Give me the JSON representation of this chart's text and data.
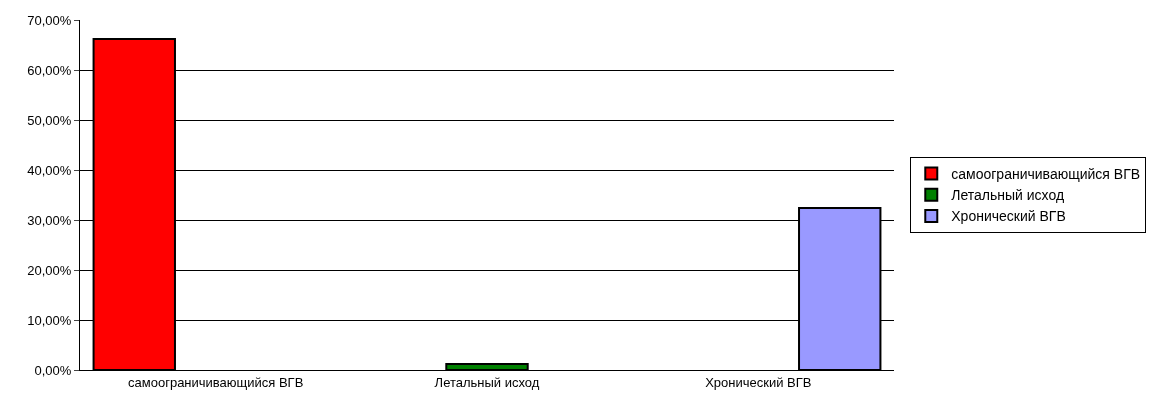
{
  "chart_data": {
    "type": "bar",
    "categories": [
      "самоограничивающийся ВГВ",
      "Летальный исход",
      "Хронический ВГВ"
    ],
    "series": [
      {
        "name": "самоограничивающийся ВГВ",
        "color": "#ff0000",
        "values": [
          66.2,
          null,
          null
        ]
      },
      {
        "name": "Летальный исход",
        "color": "#008000",
        "values": [
          null,
          1.2,
          null
        ]
      },
      {
        "name": "Хронический ВГВ",
        "color": "#9999ff",
        "values": [
          null,
          null,
          32.4
        ]
      }
    ],
    "ylim": [
      0,
      70
    ],
    "yticks": [
      {
        "value": 0,
        "label": "0,00%"
      },
      {
        "value": 10,
        "label": "10,00%"
      },
      {
        "value": 20,
        "label": "20,00%"
      },
      {
        "value": 30,
        "label": "30,00%"
      },
      {
        "value": 40,
        "label": "40,00%"
      },
      {
        "value": 50,
        "label": "50,00%"
      },
      {
        "value": 60,
        "label": "60,00%"
      },
      {
        "value": 70,
        "label": "70,00%"
      }
    ],
    "grid": "y",
    "legend": "right"
  }
}
